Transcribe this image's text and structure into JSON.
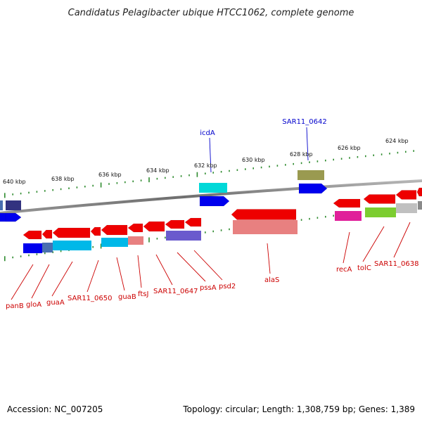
{
  "title": "Candidatus Pelagibacter ubique HTCC1062, complete genome",
  "footer": {
    "accession": "Accession: NC_007205",
    "summary": "Topology: circular; Length: 1,308,759 bp; Genes: 1,389"
  },
  "colors": {
    "forward_label": "#0000cc",
    "reverse_label": "#cc0000",
    "backbone": "#808080",
    "ticks": "#2e8b2e"
  },
  "kbp_labels": [
    "640 kbp",
    "638 kbp",
    "636 kbp",
    "634 kbp",
    "632 kbp",
    "630 kbp",
    "628 kbp",
    "626 kbp",
    "624 kbp"
  ],
  "forward_labels": [
    "icdA",
    "SAR11_0642"
  ],
  "reverse_labels": [
    "panB",
    "gloA",
    "guaA",
    "SAR11_0650",
    "guaB",
    "ftsJ",
    "SAR11_0647",
    "pssA",
    "psd2",
    "alaS",
    "recA",
    "tolC",
    "SAR11_0638"
  ]
}
